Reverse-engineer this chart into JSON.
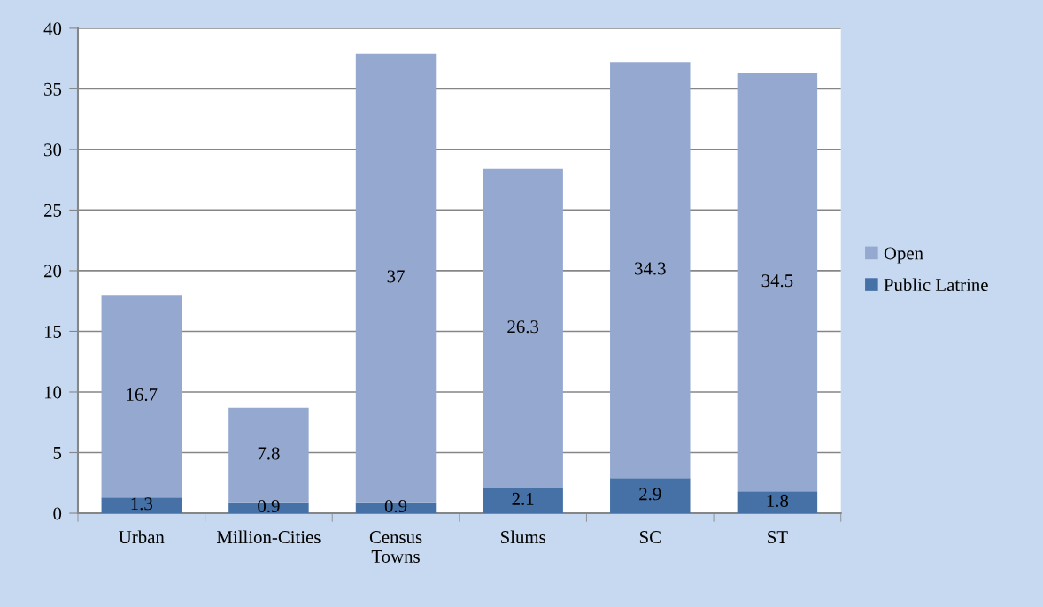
{
  "chart_data": {
    "type": "bar",
    "stacked": true,
    "categories": [
      "Urban",
      "Million-Cities",
      "Census Towns",
      "Slums",
      "SC",
      "ST"
    ],
    "series": [
      {
        "name": "Public Latrine",
        "color": "#4571a6",
        "values": [
          1.3,
          0.9,
          0.9,
          2.1,
          2.9,
          1.8
        ]
      },
      {
        "name": "Open",
        "color": "#95a9d0",
        "values": [
          16.7,
          7.8,
          37,
          26.3,
          34.3,
          34.5
        ]
      }
    ],
    "ylim": [
      0,
      40
    ],
    "yticks": [
      0,
      5,
      10,
      15,
      20,
      25,
      30,
      35,
      40
    ],
    "grid": "y",
    "legend": "right",
    "data_labels": true
  }
}
